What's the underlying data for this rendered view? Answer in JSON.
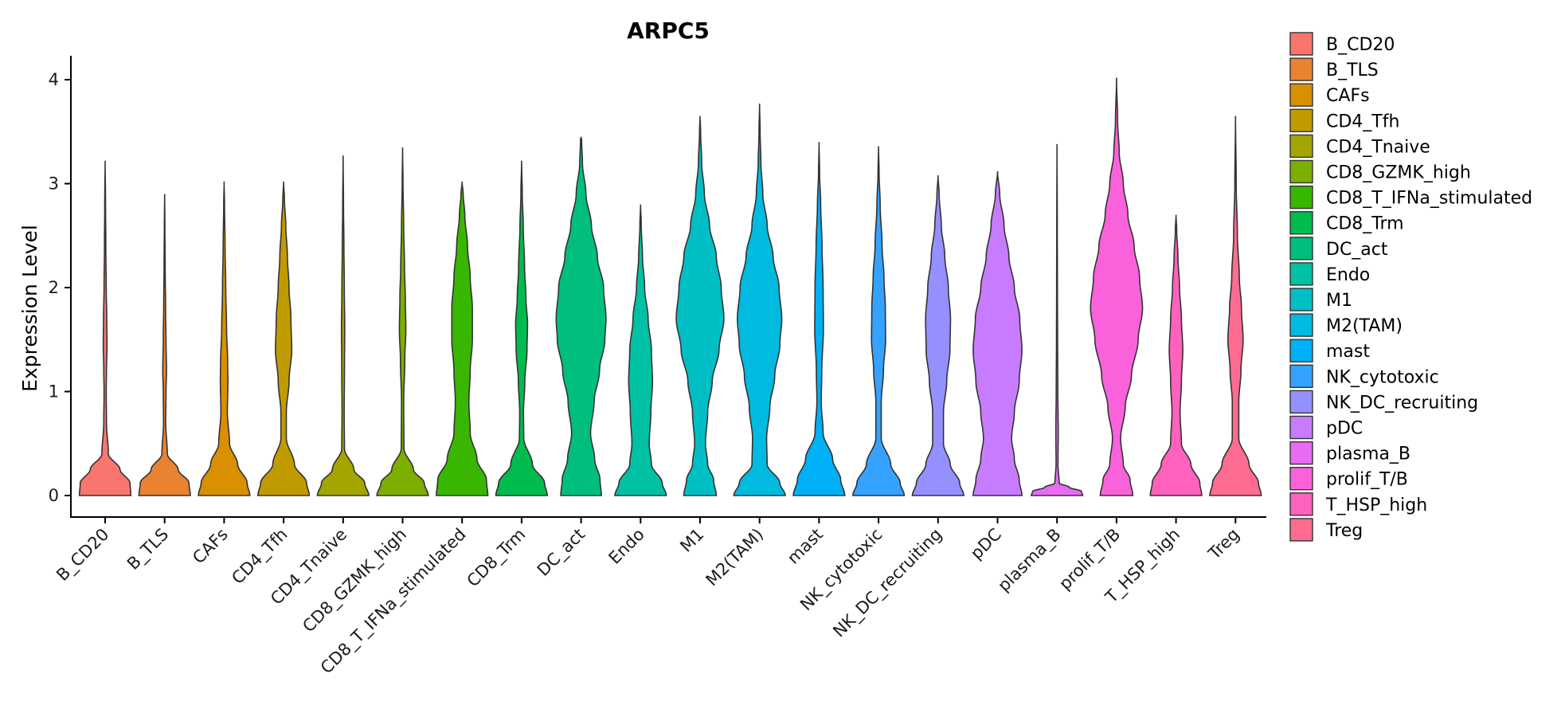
{
  "chart_data": {
    "type": "violin",
    "title": "ARPC5",
    "xlabel": "",
    "ylabel": "Expression Level",
    "ylim": [
      0,
      4.2
    ],
    "yticks": [
      0,
      1,
      2,
      3,
      4
    ],
    "grid": false,
    "legend_position": "right",
    "categories": [
      "B_CD20",
      "B_TLS",
      "CAFs",
      "CD4_Tfh",
      "CD4_Tnaive",
      "CD8_GZMK_high",
      "CD8_T_IFNa_stimulated",
      "CD8_Trm",
      "DC_act",
      "Endo",
      "M1",
      "M2(TAM)",
      "mast",
      "NK_cytotoxic",
      "NK_DC_recruiting",
      "pDC",
      "plasma_B",
      "prolif_T/B",
      "T_HSP_high",
      "Treg"
    ],
    "colors": [
      "#F8766D",
      "#EA8331",
      "#D89000",
      "#C09B00",
      "#A3A500",
      "#7CAE00",
      "#39B600",
      "#00BB4E",
      "#00BF7D",
      "#00C1A3",
      "#00BFC4",
      "#00BAE0",
      "#00B0F6",
      "#35A2FF",
      "#9590FF",
      "#C77CFF",
      "#E76BF3",
      "#FA62DB",
      "#FF62BC",
      "#FF6C91"
    ],
    "series": [
      {
        "name": "B_CD20",
        "max": 3.22,
        "profile": [
          [
            0,
            0.95
          ],
          [
            0.12,
            0.92
          ],
          [
            0.25,
            0.55
          ],
          [
            0.4,
            0.12
          ],
          [
            0.7,
            0.05
          ],
          [
            1.0,
            0.04
          ],
          [
            1.2,
            0.05
          ],
          [
            1.45,
            0.07
          ],
          [
            1.7,
            0.06
          ],
          [
            2.0,
            0.04
          ],
          [
            2.4,
            0.025
          ],
          [
            2.8,
            0.015
          ],
          [
            3.22,
            0.0
          ]
        ]
      },
      {
        "name": "B_TLS",
        "max": 2.9,
        "profile": [
          [
            0,
            0.95
          ],
          [
            0.12,
            0.9
          ],
          [
            0.25,
            0.5
          ],
          [
            0.4,
            0.1
          ],
          [
            0.7,
            0.04
          ],
          [
            1.0,
            0.05
          ],
          [
            1.2,
            0.07
          ],
          [
            1.5,
            0.05
          ],
          [
            1.8,
            0.035
          ],
          [
            2.2,
            0.02
          ],
          [
            2.6,
            0.01
          ],
          [
            2.9,
            0.0
          ]
        ]
      },
      {
        "name": "CAFs",
        "max": 3.02,
        "profile": [
          [
            0,
            0.95
          ],
          [
            0.12,
            0.85
          ],
          [
            0.3,
            0.5
          ],
          [
            0.5,
            0.2
          ],
          [
            0.8,
            0.12
          ],
          [
            1.1,
            0.14
          ],
          [
            1.3,
            0.13
          ],
          [
            1.6,
            0.09
          ],
          [
            2.0,
            0.06
          ],
          [
            2.4,
            0.035
          ],
          [
            2.8,
            0.015
          ],
          [
            3.02,
            0.0
          ]
        ]
      },
      {
        "name": "CD4_Tfh",
        "max": 3.02,
        "profile": [
          [
            0,
            0.95
          ],
          [
            0.12,
            0.85
          ],
          [
            0.3,
            0.4
          ],
          [
            0.55,
            0.1
          ],
          [
            0.8,
            0.1
          ],
          [
            1.1,
            0.2
          ],
          [
            1.4,
            0.3
          ],
          [
            1.7,
            0.27
          ],
          [
            2.0,
            0.2
          ],
          [
            2.3,
            0.14
          ],
          [
            2.6,
            0.08
          ],
          [
            2.85,
            0.03
          ],
          [
            3.02,
            0.0
          ]
        ]
      },
      {
        "name": "CD4_Tnaive",
        "max": 3.27,
        "profile": [
          [
            0,
            0.95
          ],
          [
            0.12,
            0.8
          ],
          [
            0.25,
            0.4
          ],
          [
            0.45,
            0.05
          ],
          [
            0.8,
            0.04
          ],
          [
            1.2,
            0.05
          ],
          [
            1.6,
            0.06
          ],
          [
            2.0,
            0.045
          ],
          [
            2.4,
            0.03
          ],
          [
            2.8,
            0.015
          ],
          [
            3.27,
            0.0
          ]
        ]
      },
      {
        "name": "CD8_GZMK_high",
        "max": 3.35,
        "profile": [
          [
            0,
            0.95
          ],
          [
            0.12,
            0.8
          ],
          [
            0.25,
            0.4
          ],
          [
            0.45,
            0.05
          ],
          [
            0.9,
            0.04
          ],
          [
            1.3,
            0.08
          ],
          [
            1.6,
            0.12
          ],
          [
            1.9,
            0.1
          ],
          [
            2.2,
            0.07
          ],
          [
            2.6,
            0.04
          ],
          [
            3.0,
            0.015
          ],
          [
            3.35,
            0.0
          ]
        ]
      },
      {
        "name": "CD8_T_IFNa_stimulated",
        "max": 3.02,
        "profile": [
          [
            0,
            0.95
          ],
          [
            0.15,
            0.9
          ],
          [
            0.35,
            0.55
          ],
          [
            0.6,
            0.3
          ],
          [
            0.9,
            0.25
          ],
          [
            1.2,
            0.3
          ],
          [
            1.5,
            0.38
          ],
          [
            1.8,
            0.38
          ],
          [
            2.1,
            0.3
          ],
          [
            2.4,
            0.2
          ],
          [
            2.7,
            0.1
          ],
          [
            2.9,
            0.04
          ],
          [
            3.02,
            0.0
          ]
        ]
      },
      {
        "name": "CD8_Trm",
        "max": 3.22,
        "profile": [
          [
            0,
            0.95
          ],
          [
            0.12,
            0.85
          ],
          [
            0.3,
            0.4
          ],
          [
            0.55,
            0.08
          ],
          [
            0.8,
            0.07
          ],
          [
            1.1,
            0.12
          ],
          [
            1.4,
            0.2
          ],
          [
            1.65,
            0.22
          ],
          [
            1.9,
            0.16
          ],
          [
            2.2,
            0.11
          ],
          [
            2.6,
            0.06
          ],
          [
            2.9,
            0.025
          ],
          [
            3.22,
            0.0
          ]
        ]
      },
      {
        "name": "DC_act",
        "max": 3.45,
        "profile": [
          [
            0,
            0.75
          ],
          [
            0.15,
            0.7
          ],
          [
            0.35,
            0.5
          ],
          [
            0.6,
            0.35
          ],
          [
            0.9,
            0.48
          ],
          [
            1.2,
            0.68
          ],
          [
            1.5,
            0.88
          ],
          [
            1.7,
            0.92
          ],
          [
            2.0,
            0.83
          ],
          [
            2.3,
            0.6
          ],
          [
            2.6,
            0.38
          ],
          [
            2.9,
            0.18
          ],
          [
            3.2,
            0.05
          ],
          [
            3.42,
            0.02
          ],
          [
            3.45,
            0.0
          ]
        ]
      },
      {
        "name": "Endo",
        "max": 2.8,
        "profile": [
          [
            0,
            0.95
          ],
          [
            0.12,
            0.8
          ],
          [
            0.3,
            0.4
          ],
          [
            0.5,
            0.32
          ],
          [
            0.8,
            0.38
          ],
          [
            1.1,
            0.44
          ],
          [
            1.4,
            0.4
          ],
          [
            1.7,
            0.28
          ],
          [
            2.0,
            0.15
          ],
          [
            2.3,
            0.07
          ],
          [
            2.6,
            0.025
          ],
          [
            2.8,
            0.0
          ]
        ]
      },
      {
        "name": "M1",
        "max": 3.65,
        "profile": [
          [
            0,
            0.6
          ],
          [
            0.15,
            0.5
          ],
          [
            0.3,
            0.28
          ],
          [
            0.5,
            0.2
          ],
          [
            0.8,
            0.28
          ],
          [
            1.1,
            0.45
          ],
          [
            1.4,
            0.7
          ],
          [
            1.7,
            0.88
          ],
          [
            2.0,
            0.78
          ],
          [
            2.3,
            0.6
          ],
          [
            2.6,
            0.35
          ],
          [
            2.9,
            0.16
          ],
          [
            3.2,
            0.06
          ],
          [
            3.5,
            0.02
          ],
          [
            3.65,
            0.0
          ]
        ]
      },
      {
        "name": "M2(TAM)",
        "max": 3.77,
        "profile": [
          [
            0,
            0.95
          ],
          [
            0.12,
            0.75
          ],
          [
            0.3,
            0.28
          ],
          [
            0.55,
            0.26
          ],
          [
            0.85,
            0.38
          ],
          [
            1.15,
            0.56
          ],
          [
            1.45,
            0.75
          ],
          [
            1.7,
            0.82
          ],
          [
            2.0,
            0.72
          ],
          [
            2.3,
            0.5
          ],
          [
            2.6,
            0.28
          ],
          [
            2.9,
            0.12
          ],
          [
            3.2,
            0.05
          ],
          [
            3.5,
            0.02
          ],
          [
            3.77,
            0.0
          ]
        ]
      },
      {
        "name": "mast",
        "max": 3.4,
        "profile": [
          [
            0,
            0.95
          ],
          [
            0.15,
            0.8
          ],
          [
            0.35,
            0.5
          ],
          [
            0.6,
            0.15
          ],
          [
            0.9,
            0.08
          ],
          [
            1.2,
            0.1
          ],
          [
            1.6,
            0.16
          ],
          [
            2.0,
            0.15
          ],
          [
            2.4,
            0.11
          ],
          [
            2.8,
            0.06
          ],
          [
            3.1,
            0.02
          ],
          [
            3.4,
            0.0
          ]
        ]
      },
      {
        "name": "NK_cytotoxic",
        "max": 3.36,
        "profile": [
          [
            0,
            0.95
          ],
          [
            0.12,
            0.8
          ],
          [
            0.3,
            0.45
          ],
          [
            0.55,
            0.1
          ],
          [
            0.9,
            0.1
          ],
          [
            1.2,
            0.18
          ],
          [
            1.5,
            0.26
          ],
          [
            1.8,
            0.25
          ],
          [
            2.1,
            0.2
          ],
          [
            2.4,
            0.13
          ],
          [
            2.8,
            0.06
          ],
          [
            3.1,
            0.02
          ],
          [
            3.36,
            0.0
          ]
        ]
      },
      {
        "name": "NK_DC_recruiting",
        "max": 3.08,
        "profile": [
          [
            0,
            0.95
          ],
          [
            0.12,
            0.8
          ],
          [
            0.3,
            0.45
          ],
          [
            0.5,
            0.2
          ],
          [
            0.8,
            0.2
          ],
          [
            1.1,
            0.32
          ],
          [
            1.4,
            0.44
          ],
          [
            1.7,
            0.46
          ],
          [
            2.0,
            0.38
          ],
          [
            2.3,
            0.25
          ],
          [
            2.6,
            0.12
          ],
          [
            2.9,
            0.04
          ],
          [
            3.08,
            0.0
          ]
        ]
      },
      {
        "name": "pDC",
        "max": 3.12,
        "profile": [
          [
            0,
            0.9
          ],
          [
            0.15,
            0.8
          ],
          [
            0.35,
            0.62
          ],
          [
            0.55,
            0.52
          ],
          [
            0.8,
            0.62
          ],
          [
            1.1,
            0.8
          ],
          [
            1.4,
            0.9
          ],
          [
            1.7,
            0.82
          ],
          [
            2.0,
            0.62
          ],
          [
            2.3,
            0.42
          ],
          [
            2.6,
            0.24
          ],
          [
            2.9,
            0.08
          ],
          [
            3.12,
            0.0
          ]
        ]
      },
      {
        "name": "plasma_B",
        "max": 3.38,
        "profile": [
          [
            0,
            0.95
          ],
          [
            0.04,
            0.9
          ],
          [
            0.08,
            0.45
          ],
          [
            0.12,
            0.08
          ],
          [
            0.3,
            0.035
          ],
          [
            0.6,
            0.045
          ],
          [
            1.0,
            0.03
          ],
          [
            1.5,
            0.02
          ],
          [
            2.0,
            0.015
          ],
          [
            2.6,
            0.01
          ],
          [
            3.38,
            0.0
          ]
        ]
      },
      {
        "name": "prolif_T/B",
        "max": 4.02,
        "profile": [
          [
            0,
            0.6
          ],
          [
            0.15,
            0.5
          ],
          [
            0.3,
            0.25
          ],
          [
            0.55,
            0.15
          ],
          [
            0.85,
            0.32
          ],
          [
            1.15,
            0.55
          ],
          [
            1.5,
            0.8
          ],
          [
            1.8,
            0.96
          ],
          [
            2.1,
            0.85
          ],
          [
            2.4,
            0.65
          ],
          [
            2.7,
            0.42
          ],
          [
            3.0,
            0.25
          ],
          [
            3.3,
            0.1
          ],
          [
            3.6,
            0.04
          ],
          [
            4.02,
            0.0
          ]
        ]
      },
      {
        "name": "T_HSP_high",
        "max": 2.7,
        "profile": [
          [
            0,
            0.95
          ],
          [
            0.12,
            0.88
          ],
          [
            0.3,
            0.55
          ],
          [
            0.5,
            0.2
          ],
          [
            0.8,
            0.15
          ],
          [
            1.1,
            0.2
          ],
          [
            1.4,
            0.25
          ],
          [
            1.7,
            0.2
          ],
          [
            2.0,
            0.13
          ],
          [
            2.3,
            0.07
          ],
          [
            2.55,
            0.025
          ],
          [
            2.7,
            0.0
          ]
        ]
      },
      {
        "name": "Treg",
        "max": 3.65,
        "profile": [
          [
            0,
            0.95
          ],
          [
            0.12,
            0.85
          ],
          [
            0.3,
            0.5
          ],
          [
            0.55,
            0.12
          ],
          [
            0.9,
            0.12
          ],
          [
            1.2,
            0.2
          ],
          [
            1.5,
            0.28
          ],
          [
            1.8,
            0.22
          ],
          [
            2.1,
            0.14
          ],
          [
            2.5,
            0.07
          ],
          [
            3.0,
            0.025
          ],
          [
            3.65,
            0.0
          ]
        ]
      }
    ]
  }
}
